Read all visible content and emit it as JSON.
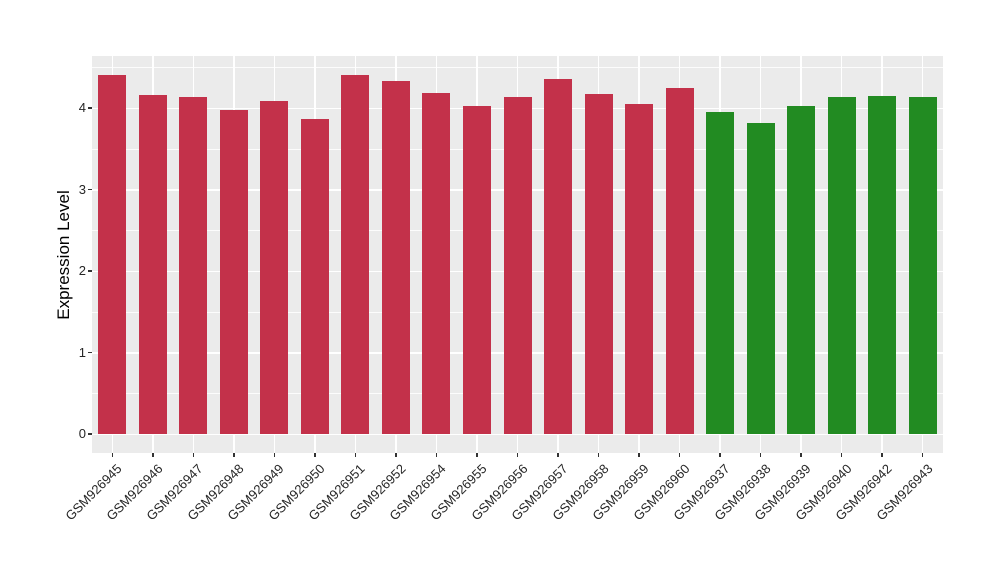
{
  "figure": {
    "background": "#FFFFFF"
  },
  "chart_data": {
    "type": "bar",
    "title": "",
    "xlabel": "",
    "ylabel": "Expression Level",
    "ylim": [
      -0.23,
      4.64
    ],
    "yticks": [
      0,
      1,
      2,
      3,
      4
    ],
    "yticks_minor": [
      0.5,
      1.5,
      2.5,
      3.5,
      4.5
    ],
    "grid": "white horizontal major+minor lines and white vertical lines at category centers over gray panel",
    "legend_position": "none",
    "panel_background": "#EBEBEB",
    "gridline_color": "#FFFFFF",
    "axis_text_color": "#262626",
    "palette": {
      "group1_red": "#C3314A",
      "group2_green": "#228B22"
    },
    "categories": [
      "GSM926945",
      "GSM926946",
      "GSM926947",
      "GSM926948",
      "GSM926949",
      "GSM926950",
      "GSM926951",
      "GSM926952",
      "GSM926954",
      "GSM926955",
      "GSM926956",
      "GSM926957",
      "GSM926958",
      "GSM926959",
      "GSM926960",
      "GSM926937",
      "GSM926938",
      "GSM926939",
      "GSM926940",
      "GSM926942",
      "GSM926943"
    ],
    "values": [
      4.4,
      4.16,
      4.13,
      3.98,
      4.08,
      3.86,
      4.4,
      4.33,
      4.18,
      4.02,
      4.14,
      4.35,
      4.17,
      4.05,
      4.24,
      3.95,
      3.82,
      4.02,
      4.13,
      4.15,
      4.13
    ],
    "bar_colors": [
      "#C3314A",
      "#C3314A",
      "#C3314A",
      "#C3314A",
      "#C3314A",
      "#C3314A",
      "#C3314A",
      "#C3314A",
      "#C3314A",
      "#C3314A",
      "#C3314A",
      "#C3314A",
      "#C3314A",
      "#C3314A",
      "#C3314A",
      "#228B22",
      "#228B22",
      "#228B22",
      "#228B22",
      "#228B22",
      "#228B22"
    ]
  }
}
